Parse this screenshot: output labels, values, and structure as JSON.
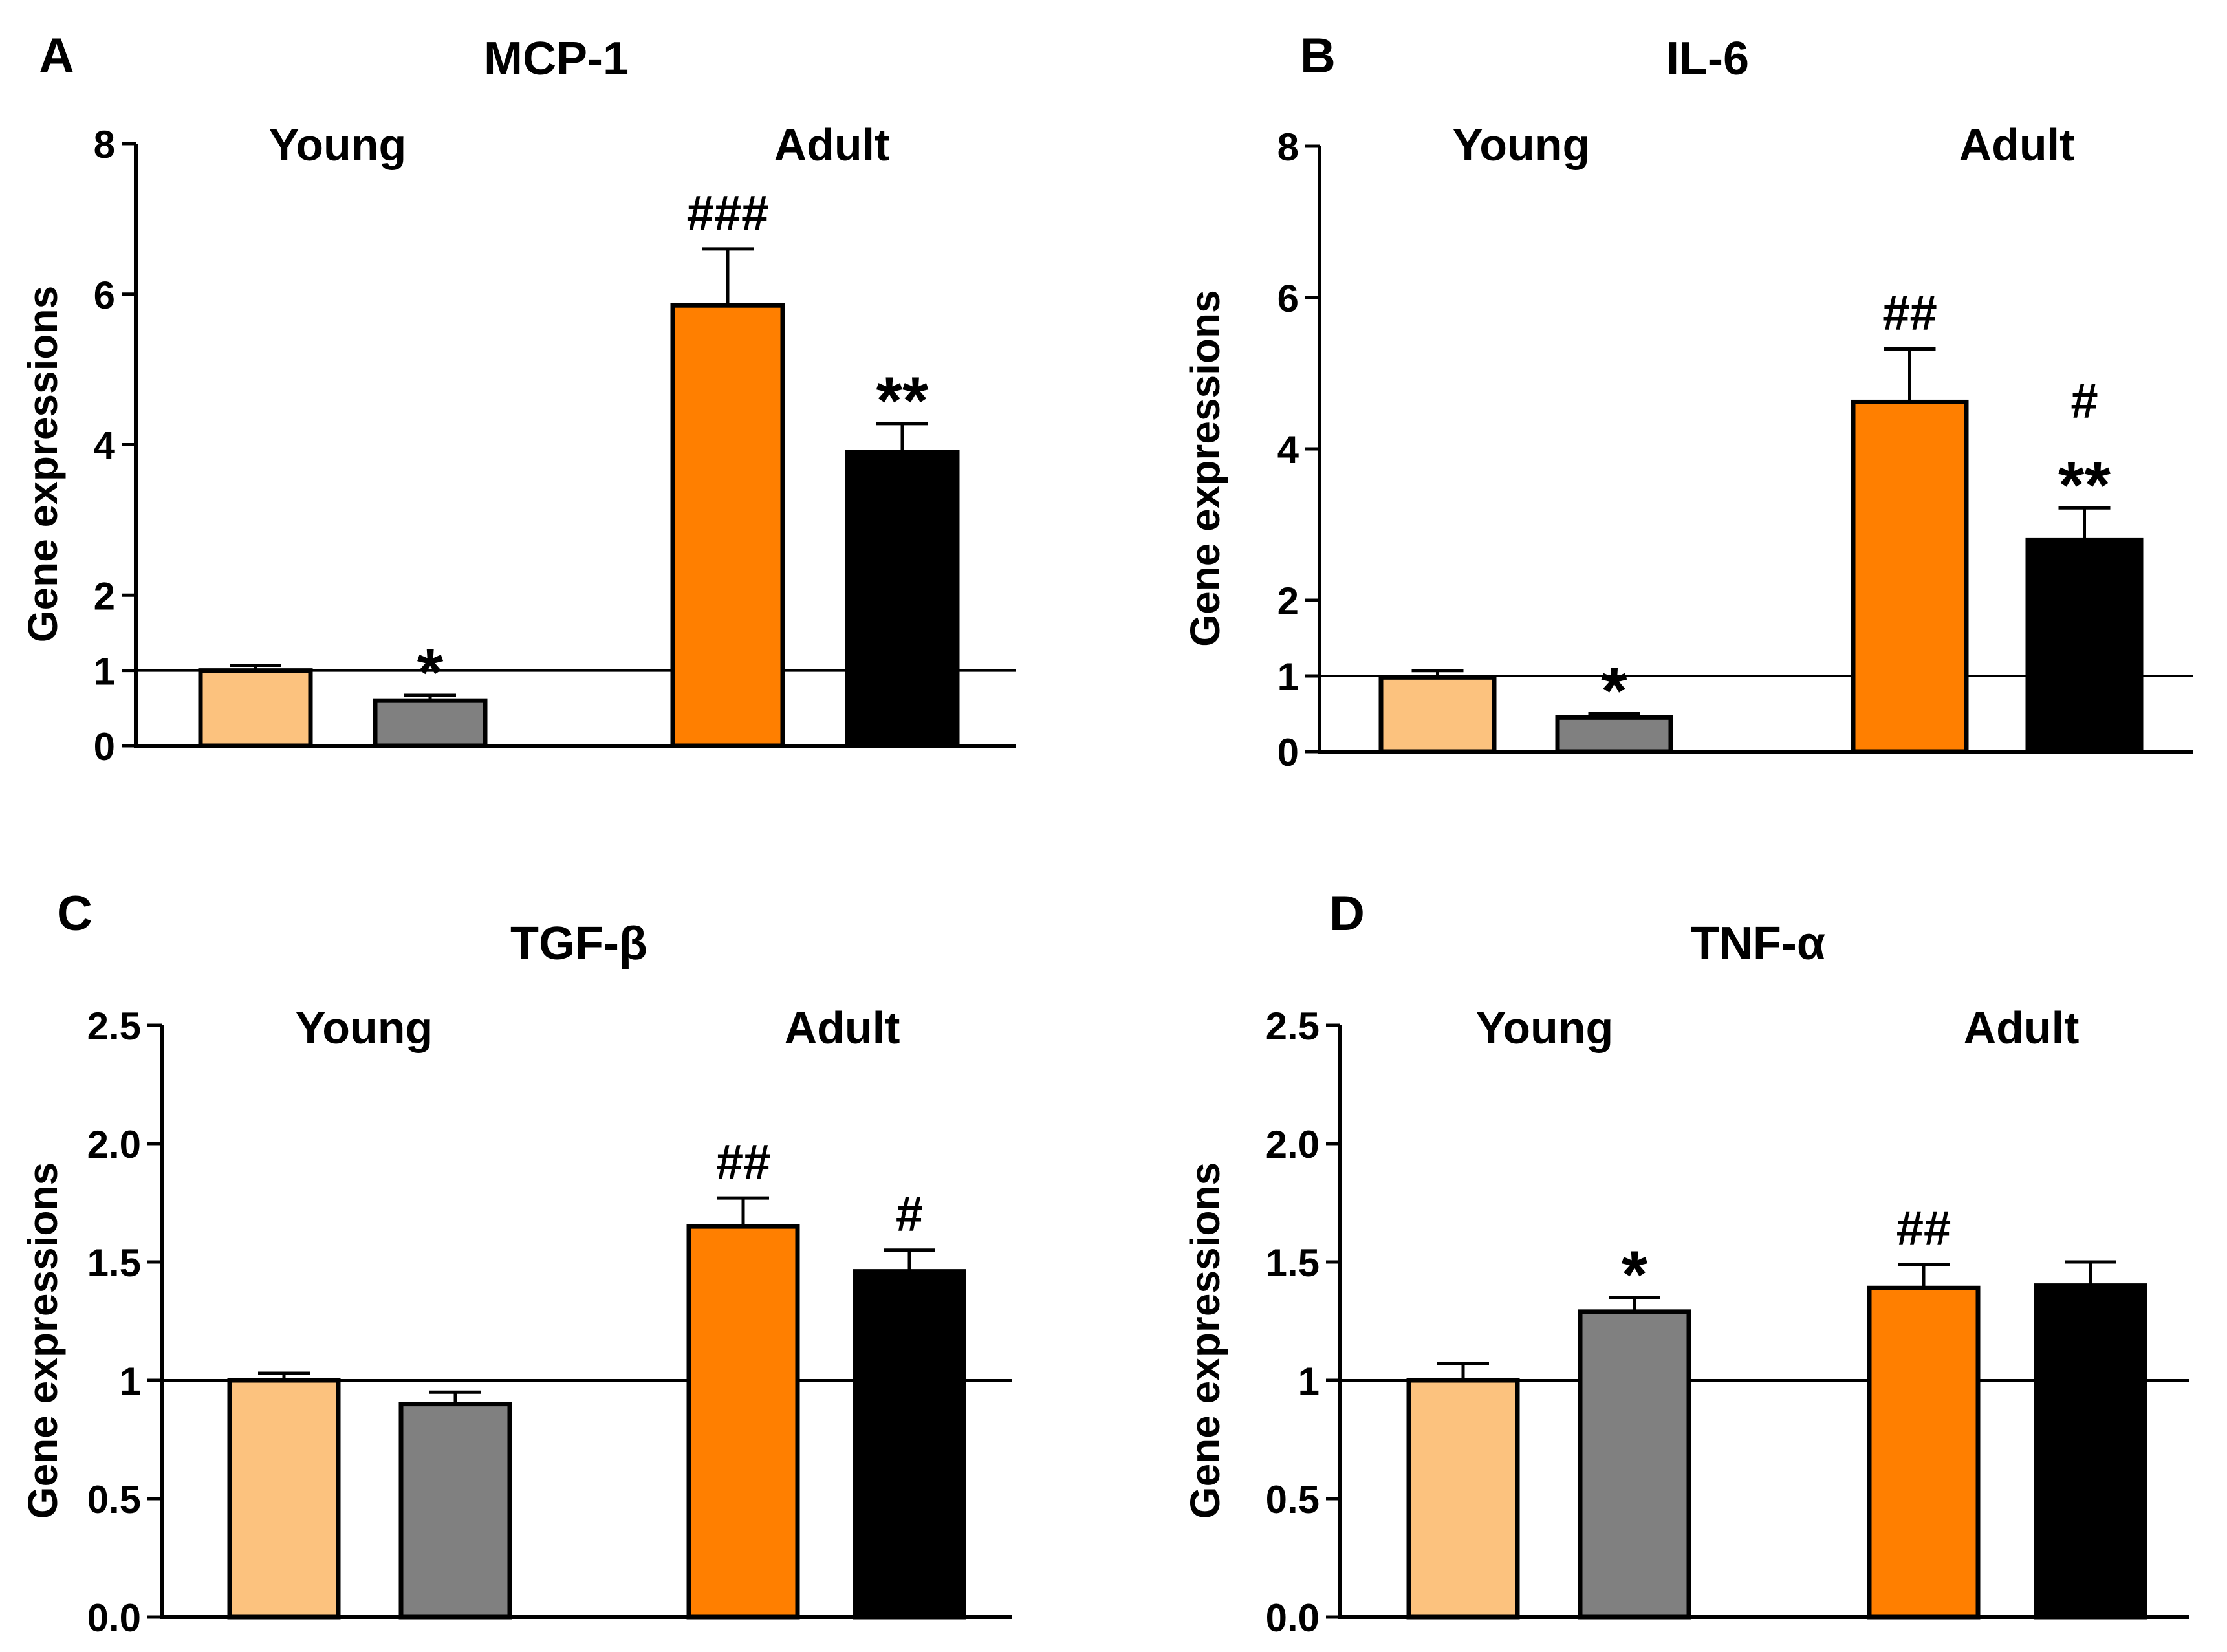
{
  "figure": {
    "colors": {
      "young_control": "#FCC27E",
      "young_treated": "#808080",
      "adult_control": "#FF7F00",
      "adult_treated": "#000000",
      "axis": "#000000"
    }
  },
  "chart_data": [
    {
      "panel": "A",
      "type": "bar",
      "title": "MCP-1",
      "ylabel": "Gene expressions",
      "ylim": [
        0,
        8
      ],
      "y_ticks": [
        0,
        1,
        2,
        4,
        6,
        8
      ],
      "y_tick_labels": [
        "0",
        "1",
        "2",
        "4",
        "6",
        "8"
      ],
      "reference_line": 1,
      "groups": [
        "Young",
        "Adult"
      ],
      "bars": [
        {
          "group": "Young",
          "color_key": "young_control",
          "value": 1.0,
          "error": 0.07,
          "annotation": ""
        },
        {
          "group": "Young",
          "color_key": "young_treated",
          "value": 0.6,
          "error": 0.07,
          "annotation": "*"
        },
        {
          "group": "Adult",
          "color_key": "adult_control",
          "value": 5.85,
          "error": 0.75,
          "annotation": "###"
        },
        {
          "group": "Adult",
          "color_key": "adult_treated",
          "value": 3.9,
          "error": 0.38,
          "annotation": "**"
        }
      ]
    },
    {
      "panel": "B",
      "type": "bar",
      "title": "IL-6",
      "ylabel": "Gene expressions",
      "ylim": [
        0,
        8
      ],
      "y_ticks": [
        0,
        1,
        2,
        4,
        6,
        8
      ],
      "y_tick_labels": [
        "0",
        "1",
        "2",
        "4",
        "6",
        "8"
      ],
      "reference_line": 1,
      "groups": [
        "Young",
        "Adult"
      ],
      "bars": [
        {
          "group": "Young",
          "color_key": "young_control",
          "value": 0.98,
          "error": 0.09,
          "annotation": ""
        },
        {
          "group": "Young",
          "color_key": "young_treated",
          "value": 0.45,
          "error": 0.05,
          "annotation": "*"
        },
        {
          "group": "Adult",
          "color_key": "adult_control",
          "value": 4.62,
          "error": 0.7,
          "annotation": "##"
        },
        {
          "group": "Adult",
          "color_key": "adult_treated",
          "value": 2.8,
          "error": 0.42,
          "annotation": "#\n**"
        }
      ]
    },
    {
      "panel": "C",
      "type": "bar",
      "title": "TGF-β",
      "ylabel": "Gene expressions",
      "ylim": [
        0,
        2.5
      ],
      "y_ticks": [
        0,
        0.5,
        1,
        1.5,
        2,
        2.5
      ],
      "y_tick_labels": [
        "0.0",
        "0.5",
        "1",
        "1.5",
        "2.0",
        "2.5"
      ],
      "reference_line": 1,
      "groups": [
        "Young",
        "Adult"
      ],
      "bars": [
        {
          "group": "Young",
          "color_key": "young_control",
          "value": 1.0,
          "error": 0.03,
          "annotation": ""
        },
        {
          "group": "Young",
          "color_key": "young_treated",
          "value": 0.9,
          "error": 0.05,
          "annotation": ""
        },
        {
          "group": "Adult",
          "color_key": "adult_control",
          "value": 1.65,
          "error": 0.12,
          "annotation": "##"
        },
        {
          "group": "Adult",
          "color_key": "adult_treated",
          "value": 1.46,
          "error": 0.09,
          "annotation": "#"
        }
      ]
    },
    {
      "panel": "D",
      "type": "bar",
      "title": "TNF-α",
      "ylabel": "Gene expressions",
      "ylim": [
        0,
        2.5
      ],
      "y_ticks": [
        0,
        0.5,
        1,
        1.5,
        2,
        2.5
      ],
      "y_tick_labels": [
        "0.0",
        "0.5",
        "1",
        "1.5",
        "2.0",
        "2.5"
      ],
      "reference_line": 1,
      "groups": [
        "Young",
        "Adult"
      ],
      "bars": [
        {
          "group": "Young",
          "color_key": "young_control",
          "value": 1.0,
          "error": 0.07,
          "annotation": ""
        },
        {
          "group": "Young",
          "color_key": "young_treated",
          "value": 1.29,
          "error": 0.06,
          "annotation": "*"
        },
        {
          "group": "Adult",
          "color_key": "adult_control",
          "value": 1.39,
          "error": 0.1,
          "annotation": "##"
        },
        {
          "group": "Adult",
          "color_key": "adult_treated",
          "value": 1.4,
          "error": 0.1,
          "annotation": ""
        }
      ]
    }
  ]
}
